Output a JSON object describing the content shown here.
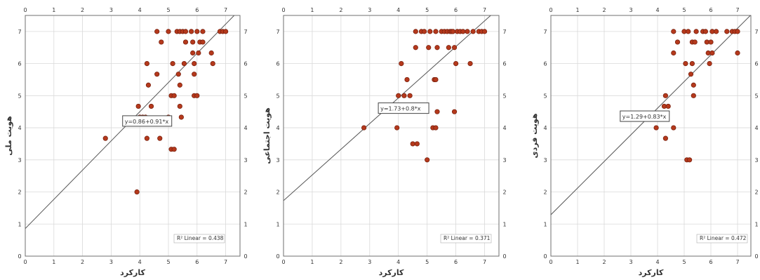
{
  "chart_data": [
    {
      "type": "scatter",
      "xlabel": "کارکرد",
      "ylabel": "هویت ملی",
      "xlim": [
        0,
        7.5
      ],
      "ylim": [
        0,
        7.5
      ],
      "x_ticks": [
        "0",
        "1",
        "2",
        "3",
        "4",
        "5",
        "6",
        "7"
      ],
      "y_ticks": [
        "0",
        "1",
        "2",
        "3",
        "4",
        "5",
        "6",
        "7"
      ],
      "grid": true,
      "fit": {
        "intercept": 0.86,
        "slope": 0.91
      },
      "equation": "y=0.86+0.91*x",
      "r2_label": "R² Linear = 0.438",
      "marker_color": "#b5391c",
      "points": [
        [
          2.8,
          3.67
        ],
        [
          3.9,
          2.0
        ],
        [
          3.95,
          4.67
        ],
        [
          4.0,
          4.33
        ],
        [
          4.1,
          4.33
        ],
        [
          4.2,
          4.33
        ],
        [
          4.25,
          6.0
        ],
        [
          4.3,
          5.33
        ],
        [
          4.25,
          3.67
        ],
        [
          4.4,
          4.67
        ],
        [
          4.6,
          7.0
        ],
        [
          4.6,
          5.67
        ],
        [
          4.7,
          3.67
        ],
        [
          4.75,
          6.67
        ],
        [
          5.0,
          7.0
        ],
        [
          5.0,
          4.33
        ],
        [
          5.1,
          5.0
        ],
        [
          5.1,
          3.33
        ],
        [
          5.2,
          3.33
        ],
        [
          5.15,
          6.0
        ],
        [
          5.2,
          5.0
        ],
        [
          5.3,
          7.0
        ],
        [
          5.35,
          5.67
        ],
        [
          5.4,
          5.33
        ],
        [
          5.4,
          4.67
        ],
        [
          5.45,
          4.33
        ],
        [
          5.4,
          7.0
        ],
        [
          5.5,
          7.0
        ],
        [
          5.55,
          6.0
        ],
        [
          5.6,
          6.67
        ],
        [
          5.6,
          7.0
        ],
        [
          5.8,
          7.0
        ],
        [
          5.85,
          6.67
        ],
        [
          5.85,
          6.33
        ],
        [
          5.9,
          6.0
        ],
        [
          5.9,
          5.67
        ],
        [
          5.9,
          5.0
        ],
        [
          6.0,
          5.0
        ],
        [
          6.0,
          7.0
        ],
        [
          6.05,
          6.33
        ],
        [
          6.1,
          6.67
        ],
        [
          6.2,
          6.67
        ],
        [
          6.2,
          7.0
        ],
        [
          6.5,
          6.33
        ],
        [
          6.55,
          6.0
        ],
        [
          6.8,
          7.0
        ],
        [
          6.9,
          7.0
        ],
        [
          7.0,
          7.0
        ]
      ]
    },
    {
      "type": "scatter",
      "xlabel": "کارکرد",
      "ylabel": "هویت اجتماعی",
      "xlim": [
        0,
        7.5
      ],
      "ylim": [
        0,
        7.5
      ],
      "x_ticks": [
        "0",
        "1",
        "2",
        "3",
        "4",
        "5",
        "6",
        "7"
      ],
      "y_ticks": [
        "0",
        "1",
        "2",
        "3",
        "4",
        "5",
        "6",
        "7"
      ],
      "grid": true,
      "fit": {
        "intercept": 1.73,
        "slope": 0.8
      },
      "equation": "y=1.73+0.8*x",
      "r2_label": "R² Linear = 0.371",
      "marker_color": "#b5391c",
      "points": [
        [
          2.8,
          4.0
        ],
        [
          3.95,
          4.0
        ],
        [
          4.0,
          5.0
        ],
        [
          4.1,
          6.0
        ],
        [
          4.2,
          5.0
        ],
        [
          4.3,
          5.5
        ],
        [
          4.4,
          5.0
        ],
        [
          4.5,
          3.5
        ],
        [
          4.6,
          6.5
        ],
        [
          4.65,
          3.5
        ],
        [
          4.6,
          7.0
        ],
        [
          4.8,
          7.0
        ],
        [
          4.9,
          7.0
        ],
        [
          5.0,
          3.0
        ],
        [
          5.05,
          6.5
        ],
        [
          5.1,
          7.0
        ],
        [
          5.2,
          4.0
        ],
        [
          5.25,
          5.5
        ],
        [
          5.3,
          5.5
        ],
        [
          5.3,
          4.0
        ],
        [
          5.35,
          4.5
        ],
        [
          5.3,
          7.0
        ],
        [
          5.35,
          6.5
        ],
        [
          5.5,
          7.0
        ],
        [
          5.6,
          7.0
        ],
        [
          5.7,
          7.0
        ],
        [
          5.75,
          6.5
        ],
        [
          5.8,
          7.0
        ],
        [
          5.85,
          7.0
        ],
        [
          5.9,
          7.0
        ],
        [
          5.95,
          6.5
        ],
        [
          6.0,
          6.0
        ],
        [
          5.95,
          4.5
        ],
        [
          6.05,
          7.0
        ],
        [
          6.15,
          7.0
        ],
        [
          6.25,
          7.0
        ],
        [
          6.4,
          7.0
        ],
        [
          6.5,
          6.0
        ],
        [
          6.6,
          7.0
        ],
        [
          6.8,
          7.0
        ],
        [
          6.9,
          7.0
        ],
        [
          7.0,
          7.0
        ]
      ]
    },
    {
      "type": "scatter",
      "xlabel": "کارکرد",
      "ylabel": "هویت فردی",
      "xlim": [
        0,
        7.5
      ],
      "ylim": [
        0,
        7.5
      ],
      "x_ticks": [
        "0",
        "1",
        "2",
        "3",
        "4",
        "5",
        "6",
        "7"
      ],
      "y_ticks": [
        "0",
        "1",
        "2",
        "3",
        "4",
        "5",
        "6",
        "7"
      ],
      "grid": true,
      "fit": {
        "intercept": 1.29,
        "slope": 0.83
      },
      "equation": "y=1.29+0.83*x",
      "r2_label": "R² Linear = 0.472",
      "marker_color": "#b5391c",
      "points": [
        [
          2.8,
          4.33
        ],
        [
          3.95,
          4.0
        ],
        [
          4.0,
          4.33
        ],
        [
          4.1,
          4.33
        ],
        [
          4.25,
          4.67
        ],
        [
          4.3,
          3.67
        ],
        [
          4.3,
          5.0
        ],
        [
          4.4,
          4.67
        ],
        [
          4.6,
          4.0
        ],
        [
          4.6,
          6.33
        ],
        [
          4.6,
          7.0
        ],
        [
          4.75,
          6.67
        ],
        [
          5.0,
          7.0
        ],
        [
          5.05,
          6.0
        ],
        [
          5.1,
          3.0
        ],
        [
          5.2,
          3.0
        ],
        [
          5.15,
          7.0
        ],
        [
          5.25,
          5.67
        ],
        [
          5.3,
          6.0
        ],
        [
          5.3,
          6.67
        ],
        [
          5.35,
          5.33
        ],
        [
          5.35,
          5.0
        ],
        [
          5.4,
          6.67
        ],
        [
          5.45,
          7.0
        ],
        [
          5.7,
          7.0
        ],
        [
          5.8,
          7.0
        ],
        [
          5.85,
          6.67
        ],
        [
          5.9,
          6.33
        ],
        [
          5.95,
          6.0
        ],
        [
          6.0,
          6.67
        ],
        [
          6.05,
          6.33
        ],
        [
          6.05,
          7.0
        ],
        [
          6.2,
          7.0
        ],
        [
          6.6,
          7.0
        ],
        [
          6.8,
          7.0
        ],
        [
          6.9,
          7.0
        ],
        [
          7.0,
          6.33
        ],
        [
          7.0,
          7.0
        ]
      ]
    }
  ]
}
